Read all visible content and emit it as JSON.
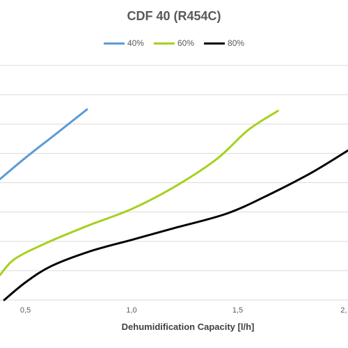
{
  "chart_data": {
    "type": "line",
    "title": "CDF 40 (R454C)",
    "xlabel": "Dehumidification Capacity [l/h]",
    "ylabel": "",
    "xlim": [
      0.38,
      2.02
    ],
    "ylim": [
      0,
      8
    ],
    "x_ticks": [
      0.5,
      1.0,
      1.5,
      2.0
    ],
    "x_tick_labels": [
      "0,5",
      "1,0",
      "1,5",
      "2,"
    ],
    "grid": "horizontal",
    "legend_position": "top",
    "series": [
      {
        "name": "40%",
        "color": "#5b9bd5",
        "x": [
          0.36,
          0.5,
          0.65,
          0.79
        ],
        "y": [
          4.0,
          4.85,
          5.7,
          6.5
        ]
      },
      {
        "name": "60%",
        "color": "#a5d11e",
        "x": [
          0.38,
          0.45,
          0.6,
          0.8,
          1.0,
          1.2,
          1.4,
          1.55,
          1.69
        ],
        "y": [
          0.85,
          1.4,
          1.95,
          2.55,
          3.1,
          3.85,
          4.8,
          5.8,
          6.45
        ]
      },
      {
        "name": "80%",
        "color": "#000000",
        "x": [
          0.4,
          0.5,
          0.62,
          0.8,
          1.0,
          1.2,
          1.45,
          1.65,
          1.85,
          2.02
        ],
        "y": [
          0.0,
          0.6,
          1.15,
          1.65,
          2.05,
          2.45,
          2.95,
          3.6,
          4.35,
          5.1
        ]
      }
    ]
  }
}
